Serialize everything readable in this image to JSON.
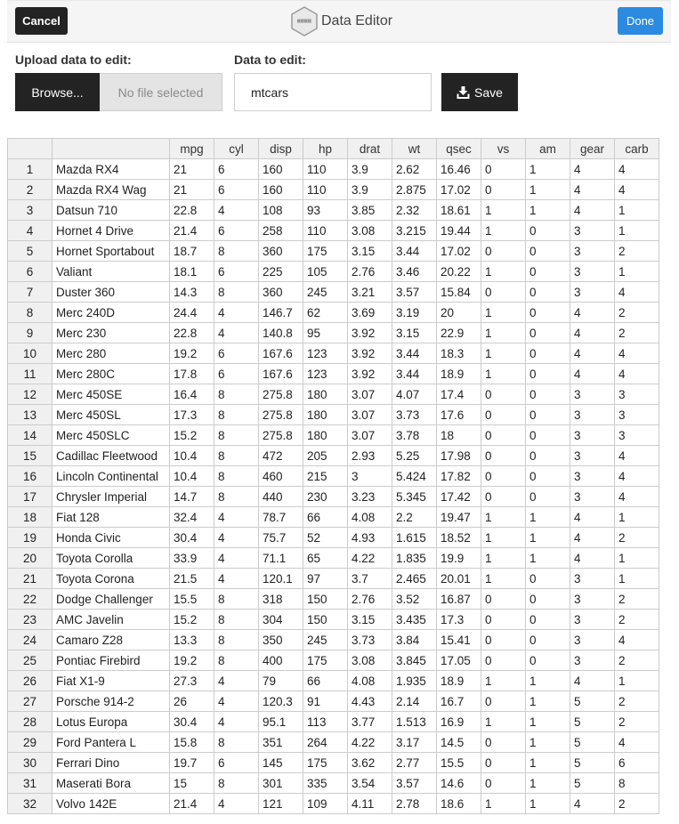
{
  "toolbar": {
    "cancel_label": "Cancel",
    "done_label": "Done",
    "title": "Data Editor",
    "logo_icon": "hexagon-logo-icon"
  },
  "upload": {
    "label": "Upload data to edit:",
    "browse_label": "Browse...",
    "file_status": "No file selected"
  },
  "edit": {
    "label": "Data to edit:",
    "value": "mtcars",
    "save_label": "Save",
    "save_icon": "download-icon"
  },
  "colors": {
    "dark_button": "#232323",
    "done_button": "#2c8be0",
    "header_bg": "#f0f0f0"
  },
  "table": {
    "columns": [
      "",
      "",
      "mpg",
      "cyl",
      "disp",
      "hp",
      "drat",
      "wt",
      "qsec",
      "vs",
      "am",
      "gear",
      "carb"
    ],
    "rows": [
      [
        "1",
        "Mazda RX4",
        "21",
        "6",
        "160",
        "110",
        "3.9",
        "2.62",
        "16.46",
        "0",
        "1",
        "4",
        "4"
      ],
      [
        "2",
        "Mazda RX4 Wag",
        "21",
        "6",
        "160",
        "110",
        "3.9",
        "2.875",
        "17.02",
        "0",
        "1",
        "4",
        "4"
      ],
      [
        "3",
        "Datsun 710",
        "22.8",
        "4",
        "108",
        "93",
        "3.85",
        "2.32",
        "18.61",
        "1",
        "1",
        "4",
        "1"
      ],
      [
        "4",
        "Hornet 4 Drive",
        "21.4",
        "6",
        "258",
        "110",
        "3.08",
        "3.215",
        "19.44",
        "1",
        "0",
        "3",
        "1"
      ],
      [
        "5",
        "Hornet Sportabout",
        "18.7",
        "8",
        "360",
        "175",
        "3.15",
        "3.44",
        "17.02",
        "0",
        "0",
        "3",
        "2"
      ],
      [
        "6",
        "Valiant",
        "18.1",
        "6",
        "225",
        "105",
        "2.76",
        "3.46",
        "20.22",
        "1",
        "0",
        "3",
        "1"
      ],
      [
        "7",
        "Duster 360",
        "14.3",
        "8",
        "360",
        "245",
        "3.21",
        "3.57",
        "15.84",
        "0",
        "0",
        "3",
        "4"
      ],
      [
        "8",
        "Merc 240D",
        "24.4",
        "4",
        "146.7",
        "62",
        "3.69",
        "3.19",
        "20",
        "1",
        "0",
        "4",
        "2"
      ],
      [
        "9",
        "Merc 230",
        "22.8",
        "4",
        "140.8",
        "95",
        "3.92",
        "3.15",
        "22.9",
        "1",
        "0",
        "4",
        "2"
      ],
      [
        "10",
        "Merc 280",
        "19.2",
        "6",
        "167.6",
        "123",
        "3.92",
        "3.44",
        "18.3",
        "1",
        "0",
        "4",
        "4"
      ],
      [
        "11",
        "Merc 280C",
        "17.8",
        "6",
        "167.6",
        "123",
        "3.92",
        "3.44",
        "18.9",
        "1",
        "0",
        "4",
        "4"
      ],
      [
        "12",
        "Merc 450SE",
        "16.4",
        "8",
        "275.8",
        "180",
        "3.07",
        "4.07",
        "17.4",
        "0",
        "0",
        "3",
        "3"
      ],
      [
        "13",
        "Merc 450SL",
        "17.3",
        "8",
        "275.8",
        "180",
        "3.07",
        "3.73",
        "17.6",
        "0",
        "0",
        "3",
        "3"
      ],
      [
        "14",
        "Merc 450SLC",
        "15.2",
        "8",
        "275.8",
        "180",
        "3.07",
        "3.78",
        "18",
        "0",
        "0",
        "3",
        "3"
      ],
      [
        "15",
        "Cadillac Fleetwood",
        "10.4",
        "8",
        "472",
        "205",
        "2.93",
        "5.25",
        "17.98",
        "0",
        "0",
        "3",
        "4"
      ],
      [
        "16",
        "Lincoln Continental",
        "10.4",
        "8",
        "460",
        "215",
        "3",
        "5.424",
        "17.82",
        "0",
        "0",
        "3",
        "4"
      ],
      [
        "17",
        "Chrysler Imperial",
        "14.7",
        "8",
        "440",
        "230",
        "3.23",
        "5.345",
        "17.42",
        "0",
        "0",
        "3",
        "4"
      ],
      [
        "18",
        "Fiat 128",
        "32.4",
        "4",
        "78.7",
        "66",
        "4.08",
        "2.2",
        "19.47",
        "1",
        "1",
        "4",
        "1"
      ],
      [
        "19",
        "Honda Civic",
        "30.4",
        "4",
        "75.7",
        "52",
        "4.93",
        "1.615",
        "18.52",
        "1",
        "1",
        "4",
        "2"
      ],
      [
        "20",
        "Toyota Corolla",
        "33.9",
        "4",
        "71.1",
        "65",
        "4.22",
        "1.835",
        "19.9",
        "1",
        "1",
        "4",
        "1"
      ],
      [
        "21",
        "Toyota Corona",
        "21.5",
        "4",
        "120.1",
        "97",
        "3.7",
        "2.465",
        "20.01",
        "1",
        "0",
        "3",
        "1"
      ],
      [
        "22",
        "Dodge Challenger",
        "15.5",
        "8",
        "318",
        "150",
        "2.76",
        "3.52",
        "16.87",
        "0",
        "0",
        "3",
        "2"
      ],
      [
        "23",
        "AMC Javelin",
        "15.2",
        "8",
        "304",
        "150",
        "3.15",
        "3.435",
        "17.3",
        "0",
        "0",
        "3",
        "2"
      ],
      [
        "24",
        "Camaro Z28",
        "13.3",
        "8",
        "350",
        "245",
        "3.73",
        "3.84",
        "15.41",
        "0",
        "0",
        "3",
        "4"
      ],
      [
        "25",
        "Pontiac Firebird",
        "19.2",
        "8",
        "400",
        "175",
        "3.08",
        "3.845",
        "17.05",
        "0",
        "0",
        "3",
        "2"
      ],
      [
        "26",
        "Fiat X1-9",
        "27.3",
        "4",
        "79",
        "66",
        "4.08",
        "1.935",
        "18.9",
        "1",
        "1",
        "4",
        "1"
      ],
      [
        "27",
        "Porsche 914-2",
        "26",
        "4",
        "120.3",
        "91",
        "4.43",
        "2.14",
        "16.7",
        "0",
        "1",
        "5",
        "2"
      ],
      [
        "28",
        "Lotus Europa",
        "30.4",
        "4",
        "95.1",
        "113",
        "3.77",
        "1.513",
        "16.9",
        "1",
        "1",
        "5",
        "2"
      ],
      [
        "29",
        "Ford Pantera L",
        "15.8",
        "8",
        "351",
        "264",
        "4.22",
        "3.17",
        "14.5",
        "0",
        "1",
        "5",
        "4"
      ],
      [
        "30",
        "Ferrari Dino",
        "19.7",
        "6",
        "145",
        "175",
        "3.62",
        "2.77",
        "15.5",
        "0",
        "1",
        "5",
        "6"
      ],
      [
        "31",
        "Maserati Bora",
        "15",
        "8",
        "301",
        "335",
        "3.54",
        "3.57",
        "14.6",
        "0",
        "1",
        "5",
        "8"
      ],
      [
        "32",
        "Volvo 142E",
        "21.4",
        "4",
        "121",
        "109",
        "4.11",
        "2.78",
        "18.6",
        "1",
        "1",
        "4",
        "2"
      ]
    ]
  }
}
